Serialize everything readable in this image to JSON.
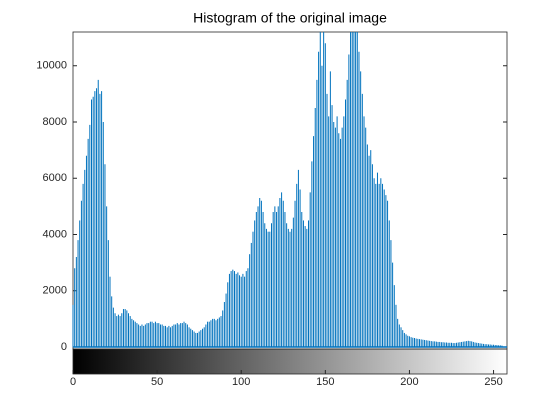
{
  "chart_data": {
    "type": "bar",
    "title": "Histogram of the original image",
    "color": "#0072bd",
    "x": [
      0,
      1,
      2,
      3,
      4,
      5,
      6,
      7,
      8,
      9,
      10,
      11,
      12,
      13,
      14,
      15,
      16,
      17,
      18,
      19,
      20,
      21,
      22,
      23,
      24,
      25,
      26,
      27,
      28,
      29,
      30,
      31,
      32,
      33,
      34,
      35,
      36,
      37,
      38,
      39,
      40,
      41,
      42,
      43,
      44,
      45,
      46,
      47,
      48,
      49,
      50,
      51,
      52,
      53,
      54,
      55,
      56,
      57,
      58,
      59,
      60,
      61,
      62,
      63,
      64,
      65,
      66,
      67,
      68,
      69,
      70,
      71,
      72,
      73,
      74,
      75,
      76,
      77,
      78,
      79,
      80,
      81,
      82,
      83,
      84,
      85,
      86,
      87,
      88,
      89,
      90,
      91,
      92,
      93,
      94,
      95,
      96,
      97,
      98,
      99,
      100,
      101,
      102,
      103,
      104,
      105,
      106,
      107,
      108,
      109,
      110,
      111,
      112,
      113,
      114,
      115,
      116,
      117,
      118,
      119,
      120,
      121,
      122,
      123,
      124,
      125,
      126,
      127,
      128,
      129,
      130,
      131,
      132,
      133,
      134,
      135,
      136,
      137,
      138,
      139,
      140,
      141,
      142,
      143,
      144,
      145,
      146,
      147,
      148,
      149,
      150,
      151,
      152,
      153,
      154,
      155,
      156,
      157,
      158,
      159,
      160,
      161,
      162,
      163,
      164,
      165,
      166,
      167,
      168,
      169,
      170,
      171,
      172,
      173,
      174,
      175,
      176,
      177,
      178,
      179,
      180,
      181,
      182,
      183,
      184,
      185,
      186,
      187,
      188,
      189,
      190,
      191,
      192,
      193,
      194,
      195,
      196,
      197,
      198,
      199,
      200,
      201,
      202,
      203,
      204,
      205,
      206,
      207,
      208,
      209,
      210,
      211,
      212,
      213,
      214,
      215,
      216,
      217,
      218,
      219,
      220,
      221,
      222,
      223,
      224,
      225,
      226,
      227,
      228,
      229,
      230,
      231,
      232,
      233,
      234,
      235,
      236,
      237,
      238,
      239,
      240,
      241,
      242,
      243,
      244,
      245,
      246,
      247,
      248,
      249,
      250,
      251,
      252,
      253,
      254,
      255
    ],
    "values": [
      1500,
      2800,
      3200,
      3800,
      4500,
      5200,
      5800,
      6300,
      6800,
      7400,
      7900,
      8800,
      8900,
      9100,
      9200,
      9500,
      9000,
      9100,
      8000,
      6500,
      5000,
      3800,
      2500,
      1800,
      1400,
      1200,
      1100,
      1150,
      1100,
      1200,
      1350,
      1350,
      1300,
      1200,
      1100,
      1000,
      950,
      900,
      850,
      800,
      750,
      800,
      750,
      800,
      850,
      850,
      900,
      900,
      850,
      900,
      850,
      850,
      800,
      800,
      750,
      750,
      700,
      750,
      700,
      750,
      800,
      800,
      850,
      800,
      850,
      850,
      900,
      850,
      800,
      700,
      650,
      600,
      550,
      500,
      500,
      550,
      600,
      650,
      700,
      800,
      900,
      900,
      950,
      1000,
      1000,
      950,
      1000,
      1050,
      1100,
      1300,
      1600,
      1900,
      2300,
      2600,
      2700,
      2750,
      2700,
      2600,
      2650,
      2550,
      2500,
      2600,
      2500,
      2700,
      2800,
      3300,
      3700,
      4100,
      4500,
      4800,
      5000,
      5300,
      5200,
      4800,
      4400,
      4200,
      4100,
      4100,
      4400,
      4800,
      5000,
      4800,
      5000,
      5300,
      5500,
      5200,
      4800,
      4400,
      4200,
      4100,
      4200,
      4600,
      5200,
      5800,
      6300,
      5600,
      4800,
      4500,
      4300,
      4200,
      4500,
      5500,
      6600,
      7500,
      8500,
      9500,
      10500,
      11200,
      10000,
      11200,
      10800,
      9000,
      8200,
      9800,
      8600,
      8000,
      7800,
      8200,
      7600,
      7400,
      7800,
      8200,
      8800,
      9500,
      10400,
      11200,
      11200,
      11200,
      11200,
      11200,
      10500,
      9800,
      9000,
      8200,
      7800,
      7200,
      6800,
      7000,
      6500,
      6000,
      5800,
      6200,
      5800,
      6000,
      5800,
      5600,
      5400,
      5200,
      4500,
      3800,
      3000,
      2200,
      1500,
      1000,
      800,
      700,
      600,
      500,
      450,
      400,
      380,
      350,
      330,
      320,
      300,
      290,
      280,
      270,
      260,
      250,
      240,
      230,
      220,
      210,
      200,
      200,
      190,
      180,
      180,
      170,
      170,
      160,
      160,
      150,
      150,
      150,
      140,
      140,
      150,
      160,
      170,
      180,
      190,
      200,
      210,
      220,
      210,
      200,
      180,
      160,
      150,
      140,
      130,
      120,
      110,
      100,
      100,
      90,
      90,
      80,
      80,
      70,
      70,
      60,
      60,
      50
    ],
    "xlim": [
      0,
      258
    ],
    "ylim": [
      0,
      11200
    ],
    "xticks": [
      0,
      50,
      100,
      150,
      200,
      250
    ],
    "yticks": [
      0,
      2000,
      4000,
      6000,
      8000,
      10000
    ]
  }
}
